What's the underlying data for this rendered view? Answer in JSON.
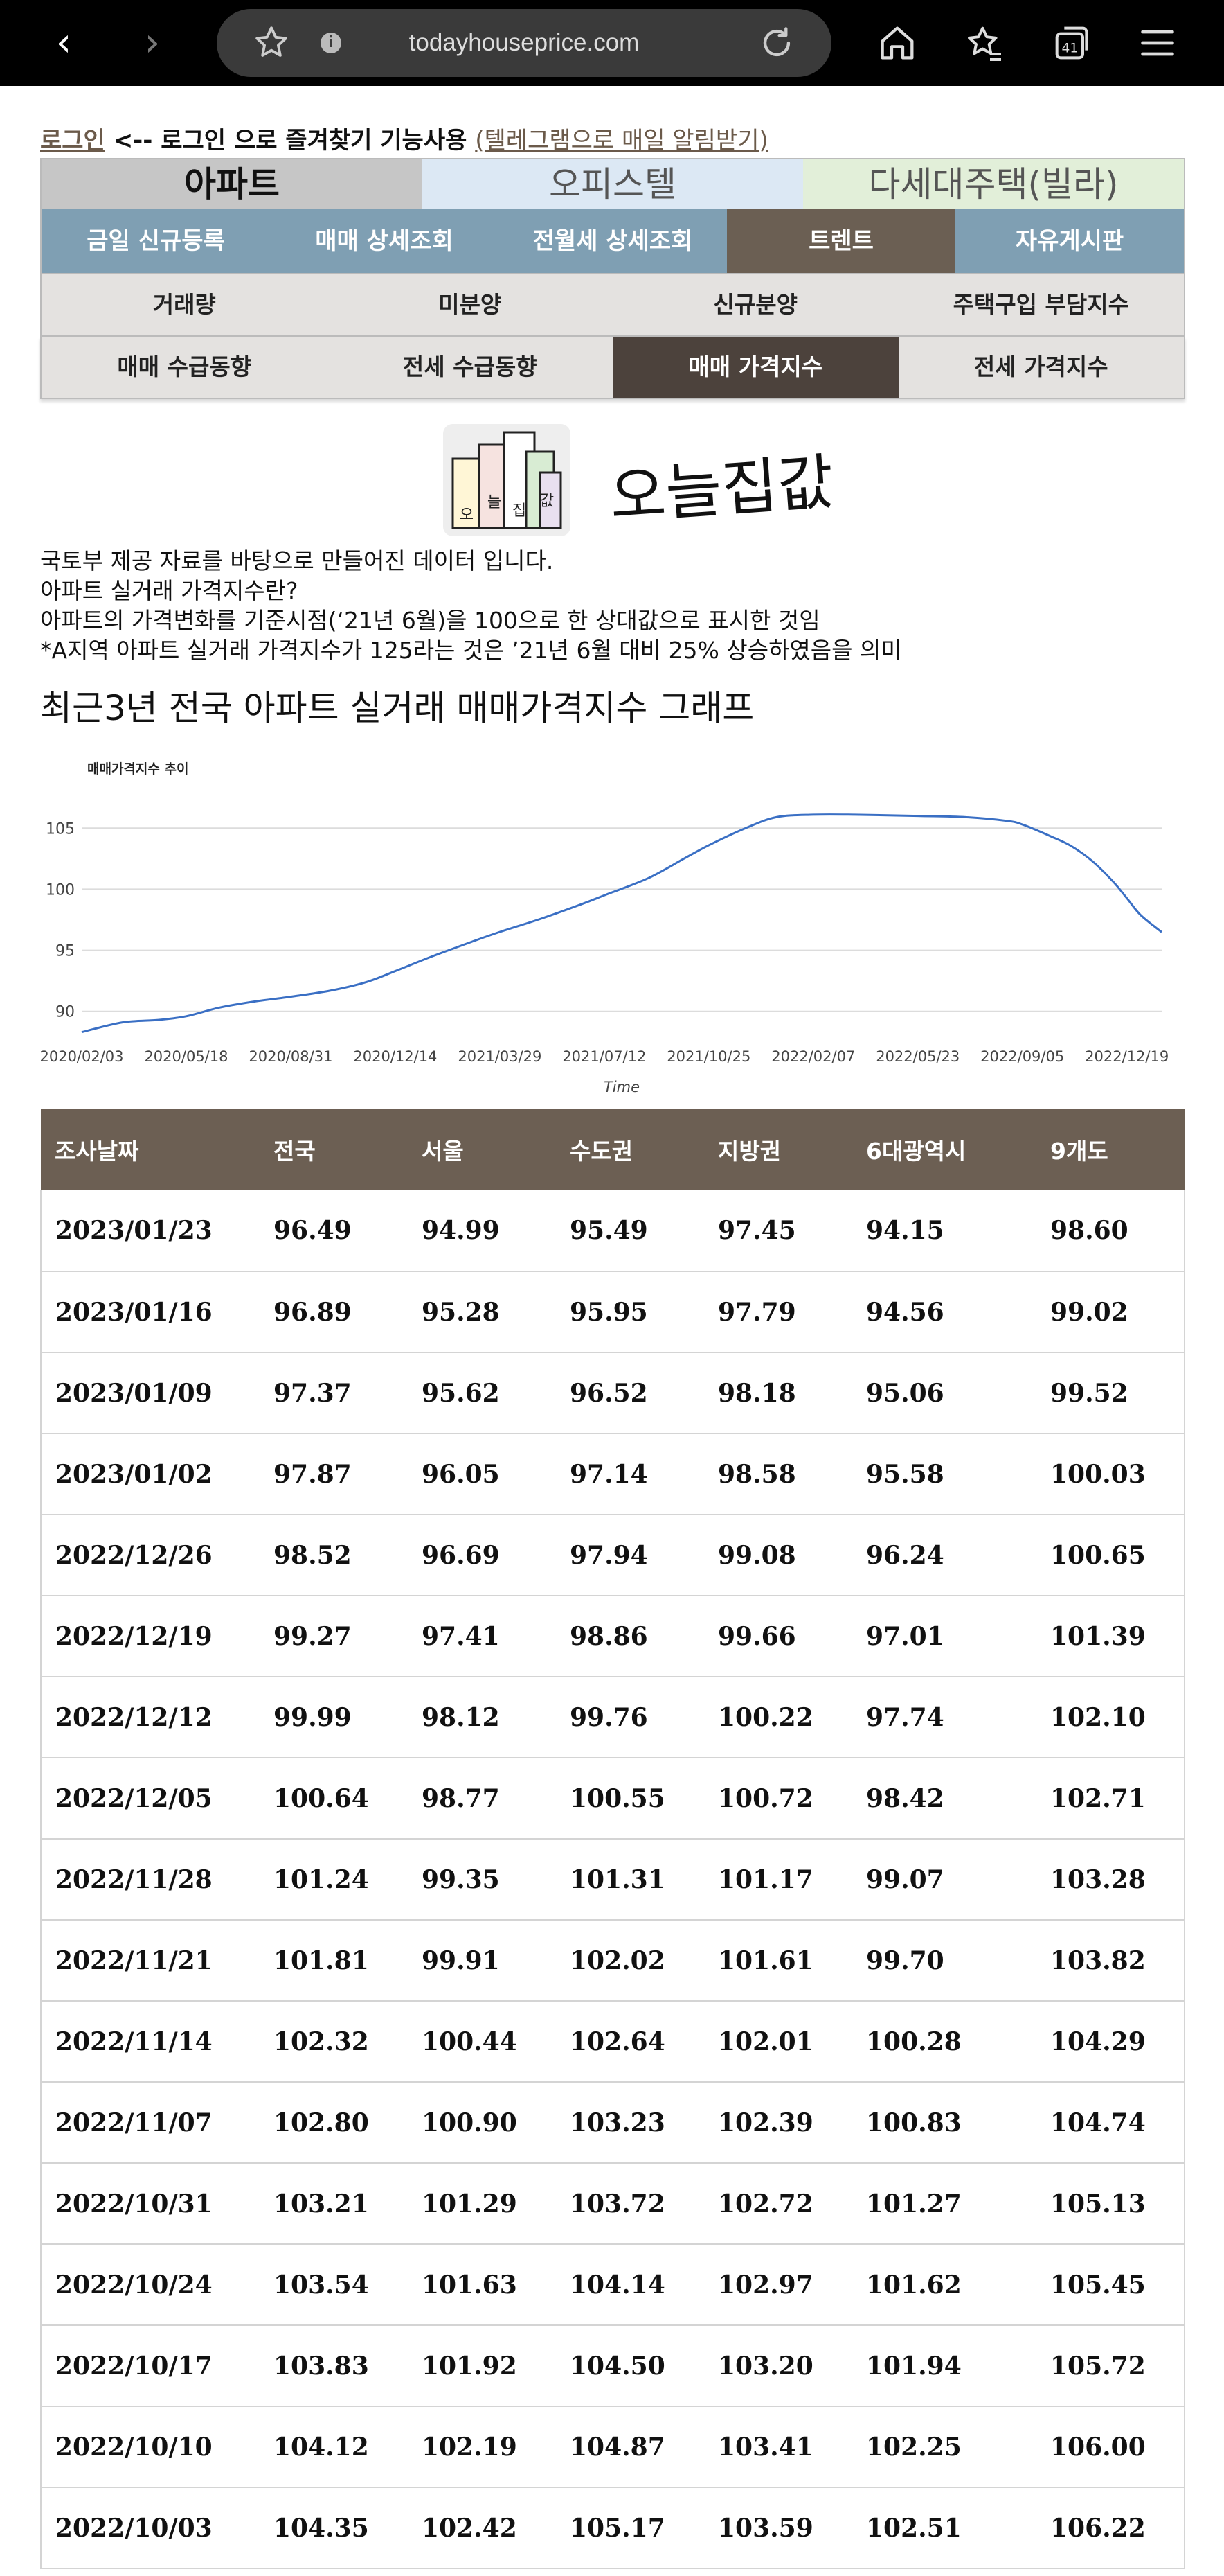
{
  "browser": {
    "url": "todayhouseprice.com",
    "tab_count": "41"
  },
  "login": {
    "login_link": "로그인",
    "middle_text": "<-- 로그인 으로 즐겨찾기 기능사용",
    "telegram_link": "(텔레그램으로 매일 알림받기)"
  },
  "categories": {
    "apt": "아파트",
    "office": "오피스텔",
    "villa": "다세대주택(빌라)"
  },
  "menu_row1": [
    "금일 신규등록",
    "매매 상세조회",
    "전월세 상세조회",
    "트렌트",
    "자유게시판"
  ],
  "menu_row2": [
    "거래량",
    "미분양",
    "신규분양",
    "주택구입 부담지수"
  ],
  "menu_row3": [
    "매매 수급동향",
    "전세 수급동향",
    "매매 가격지수",
    "전세 가격지수"
  ],
  "logo": {
    "text": "오늘집값",
    "icon_letters": [
      "오",
      "늘",
      "집",
      "값"
    ]
  },
  "description": {
    "line1": "국토부 제공 자료를 바탕으로 만들어진 데이터 입니다.",
    "line2": "아파트 실거래 가격지수란?",
    "line3": "아파트의 가격변화를 기준시점(‘21년 6월)을 100으로 한 상대값으로 표시한 것임",
    "line4": "*A지역 아파트 실거래 가격지수가 125라는 것은 ’21년 6월 대비 25% 상승하였음을 의미"
  },
  "chart_section_title": "최근3년 전국 아파트 실거래 매매가격지수 그래프",
  "chart_data": {
    "type": "line",
    "title": "매매가격지수 추이",
    "xlabel": "Time",
    "ylabel": "",
    "xlim": [
      "2020/02/03",
      "2023/01/23"
    ],
    "ylim": [
      88,
      107
    ],
    "yticks": [
      90,
      95,
      100,
      105
    ],
    "xticks": [
      "2020/02/03",
      "2020/05/18",
      "2020/08/31",
      "2020/12/14",
      "2021/03/29",
      "2021/07/12",
      "2021/10/25",
      "2022/02/07",
      "2022/05/23",
      "2022/09/05",
      "2022/12/19"
    ],
    "grid": true,
    "series": [
      {
        "color": "#3a6fc4",
        "x": [
          "2020/02/03",
          "2020/03/15",
          "2020/04/20",
          "2020/05/18",
          "2020/06/20",
          "2020/07/25",
          "2020/08/31",
          "2020/10/10",
          "2020/11/15",
          "2020/12/14",
          "2021/01/20",
          "2021/03/01",
          "2021/03/29",
          "2021/05/10",
          "2021/06/20",
          "2021/07/12",
          "2021/08/25",
          "2021/09/30",
          "2021/10/25",
          "2021/12/01",
          "2022/01/01",
          "2022/02/07",
          "2022/03/20",
          "2022/05/23",
          "2022/07/10",
          "2022/08/20",
          "2022/09/05",
          "2022/10/03",
          "2022/10/24",
          "2022/11/14",
          "2022/12/05",
          "2022/12/19",
          "2023/01/02",
          "2023/01/23"
        ],
        "y": [
          88.3,
          89.1,
          89.3,
          89.6,
          90.3,
          90.8,
          91.2,
          91.7,
          92.4,
          93.3,
          94.5,
          95.7,
          96.5,
          97.6,
          98.8,
          99.5,
          100.9,
          102.5,
          103.6,
          105.0,
          105.9,
          106.1,
          106.1,
          106.0,
          105.9,
          105.6,
          105.3,
          104.35,
          103.54,
          102.32,
          100.64,
          99.27,
          97.87,
          96.49
        ]
      }
    ]
  },
  "table": {
    "headers": [
      "조사날짜",
      "전국",
      "서울",
      "수도권",
      "지방권",
      "6대광역시",
      "9개도"
    ],
    "rows": [
      [
        "2023/01/23",
        "96.49",
        "94.99",
        "95.49",
        "97.45",
        "94.15",
        "98.60"
      ],
      [
        "2023/01/16",
        "96.89",
        "95.28",
        "95.95",
        "97.79",
        "94.56",
        "99.02"
      ],
      [
        "2023/01/09",
        "97.37",
        "95.62",
        "96.52",
        "98.18",
        "95.06",
        "99.52"
      ],
      [
        "2023/01/02",
        "97.87",
        "96.05",
        "97.14",
        "98.58",
        "95.58",
        "100.03"
      ],
      [
        "2022/12/26",
        "98.52",
        "96.69",
        "97.94",
        "99.08",
        "96.24",
        "100.65"
      ],
      [
        "2022/12/19",
        "99.27",
        "97.41",
        "98.86",
        "99.66",
        "97.01",
        "101.39"
      ],
      [
        "2022/12/12",
        "99.99",
        "98.12",
        "99.76",
        "100.22",
        "97.74",
        "102.10"
      ],
      [
        "2022/12/05",
        "100.64",
        "98.77",
        "100.55",
        "100.72",
        "98.42",
        "102.71"
      ],
      [
        "2022/11/28",
        "101.24",
        "99.35",
        "101.31",
        "101.17",
        "99.07",
        "103.28"
      ],
      [
        "2022/11/21",
        "101.81",
        "99.91",
        "102.02",
        "101.61",
        "99.70",
        "103.82"
      ],
      [
        "2022/11/14",
        "102.32",
        "100.44",
        "102.64",
        "102.01",
        "100.28",
        "104.29"
      ],
      [
        "2022/11/07",
        "102.80",
        "100.90",
        "103.23",
        "102.39",
        "100.83",
        "104.74"
      ],
      [
        "2022/10/31",
        "103.21",
        "101.29",
        "103.72",
        "102.72",
        "101.27",
        "105.13"
      ],
      [
        "2022/10/24",
        "103.54",
        "101.63",
        "104.14",
        "102.97",
        "101.62",
        "105.45"
      ],
      [
        "2022/10/17",
        "103.83",
        "101.92",
        "104.50",
        "103.20",
        "101.94",
        "105.72"
      ],
      [
        "2022/10/10",
        "104.12",
        "102.19",
        "104.87",
        "103.41",
        "102.25",
        "106.00"
      ],
      [
        "2022/10/03",
        "104.35",
        "102.42",
        "105.17",
        "103.59",
        "102.51",
        "106.22"
      ]
    ]
  }
}
